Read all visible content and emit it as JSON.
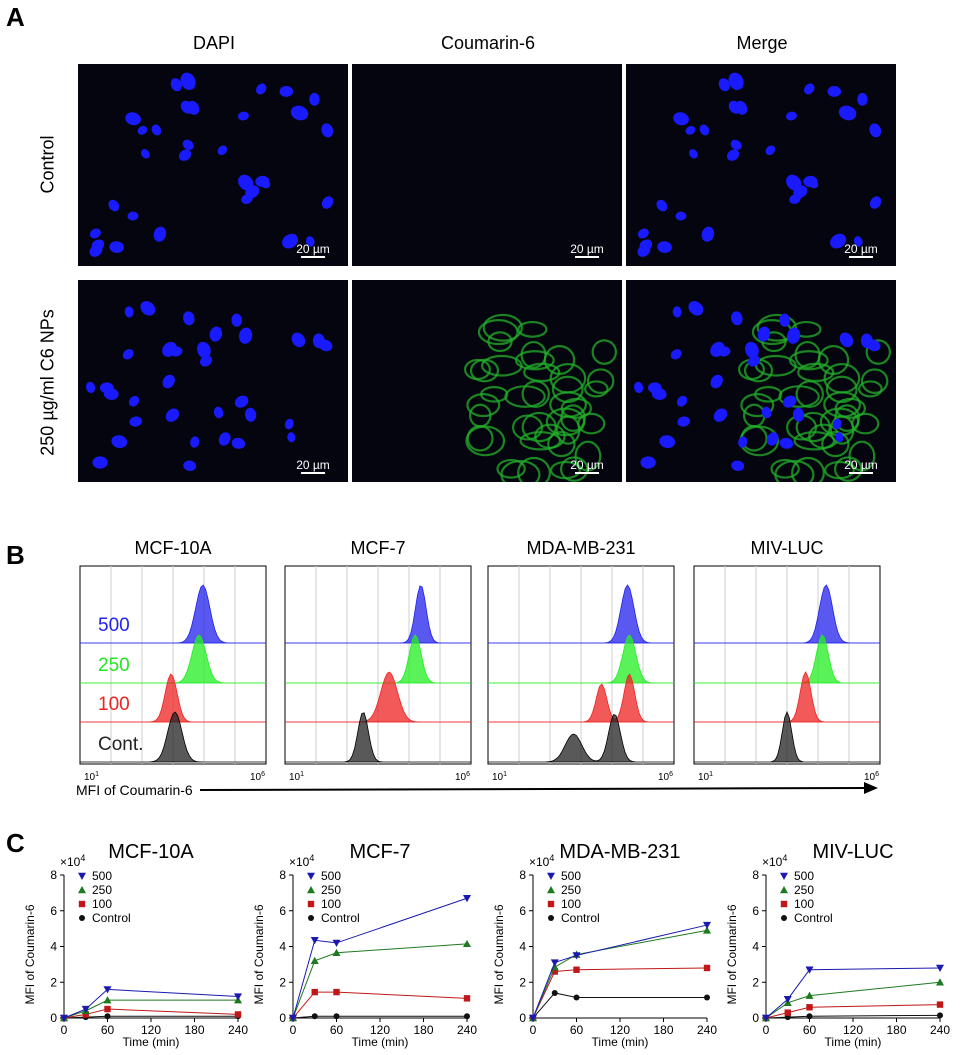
{
  "panels": {
    "a": "A",
    "b": "B",
    "c": "C"
  },
  "micrographs": {
    "columns": [
      "DAPI",
      "Coumarin-6",
      "Merge"
    ],
    "rows": [
      "Control",
      "250 µg/ml C6 NPs"
    ],
    "scale_bar": "20 µm",
    "colors": {
      "nucleus": "#1a1aff",
      "cytoplasm": "#22b02a",
      "background": "#05050f"
    }
  },
  "flow": {
    "cell_lines": [
      "MCF-10A",
      "MCF-7",
      "MDA-MB-231",
      "MIV-LUC"
    ],
    "doses": [
      {
        "label": "500",
        "color": "#2222ee"
      },
      {
        "label": "250",
        "color": "#22ee22"
      },
      {
        "label": "100",
        "color": "#ee2222"
      },
      {
        "label": "Cont.",
        "color": "#222222"
      }
    ],
    "axis_min": "10",
    "axis_min_exp": "1",
    "axis_max": "10",
    "axis_max_exp": "6",
    "xlabel": "MFI of Coumarin-6"
  },
  "chart_data": [
    {
      "type": "line",
      "title": "MCF-10A",
      "xlabel": "Time (min)",
      "ylabel": "MFI of Coumarin-6",
      "y_multiplier": "×10",
      "y_multiplier_exp": "4",
      "x": [
        0,
        30,
        60,
        240
      ],
      "xticks": [
        0,
        60,
        120,
        180,
        240
      ],
      "ylim": [
        0,
        8
      ],
      "yticks": [
        0,
        2,
        4,
        6,
        8
      ],
      "series": [
        {
          "name": "500",
          "values": [
            0,
            0.5,
            1.6,
            1.2
          ],
          "color": "#1a1ab0",
          "marker": "triangle-down"
        },
        {
          "name": "250",
          "values": [
            0,
            0.4,
            1.0,
            1.0
          ],
          "color": "#1e7a1e",
          "marker": "triangle-up"
        },
        {
          "name": "100",
          "values": [
            0,
            0.2,
            0.5,
            0.2
          ],
          "color": "#c01818",
          "marker": "square"
        },
        {
          "name": "Control",
          "values": [
            0,
            0.05,
            0.1,
            0.1
          ],
          "color": "#111111",
          "marker": "circle"
        }
      ]
    },
    {
      "type": "line",
      "title": "MCF-7",
      "xlabel": "Time (min)",
      "ylabel": "MFI of Coumarin-6",
      "y_multiplier": "×10",
      "y_multiplier_exp": "4",
      "x": [
        0,
        30,
        60,
        240
      ],
      "xticks": [
        0,
        60,
        120,
        180,
        240
      ],
      "ylim": [
        0,
        8
      ],
      "yticks": [
        0,
        2,
        4,
        6,
        8
      ],
      "series": [
        {
          "name": "500",
          "values": [
            0,
            4.35,
            4.2,
            6.7
          ],
          "color": "#1a1ab0",
          "marker": "triangle-down"
        },
        {
          "name": "250",
          "values": [
            0,
            3.2,
            3.65,
            4.15
          ],
          "color": "#1e7a1e",
          "marker": "triangle-up"
        },
        {
          "name": "100",
          "values": [
            0,
            1.45,
            1.45,
            1.1
          ],
          "color": "#c01818",
          "marker": "square"
        },
        {
          "name": "Control",
          "values": [
            0,
            0.1,
            0.1,
            0.1
          ],
          "color": "#111111",
          "marker": "circle"
        }
      ]
    },
    {
      "type": "line",
      "title": "MDA-MB-231",
      "xlabel": "Time (min)",
      "ylabel": "MFI of Coumarin-6",
      "y_multiplier": "×10",
      "y_multiplier_exp": "4",
      "x": [
        0,
        30,
        60,
        240
      ],
      "xticks": [
        0,
        60,
        120,
        180,
        240
      ],
      "ylim": [
        0,
        8
      ],
      "yticks": [
        0,
        2,
        4,
        6,
        8
      ],
      "series": [
        {
          "name": "500",
          "values": [
            0,
            3.1,
            3.5,
            5.2
          ],
          "color": "#1a1ab0",
          "marker": "triangle-down"
        },
        {
          "name": "250",
          "values": [
            0,
            2.85,
            3.55,
            4.9
          ],
          "color": "#1e7a1e",
          "marker": "triangle-up"
        },
        {
          "name": "100",
          "values": [
            0,
            2.6,
            2.7,
            2.8
          ],
          "color": "#c01818",
          "marker": "square"
        },
        {
          "name": "Control",
          "values": [
            0,
            1.4,
            1.15,
            1.15
          ],
          "color": "#111111",
          "marker": "circle"
        }
      ]
    },
    {
      "type": "line",
      "title": "MIV-LUC",
      "xlabel": "Time (min)",
      "ylabel": "MFI of Coumarin-6",
      "y_multiplier": "×10",
      "y_multiplier_exp": "4",
      "x": [
        0,
        30,
        60,
        240
      ],
      "xticks": [
        0,
        60,
        120,
        180,
        240
      ],
      "ylim": [
        0,
        8
      ],
      "yticks": [
        0,
        2,
        4,
        6,
        8
      ],
      "series": [
        {
          "name": "500",
          "values": [
            0,
            1.05,
            2.7,
            2.8
          ],
          "color": "#1a1ab0",
          "marker": "triangle-down"
        },
        {
          "name": "250",
          "values": [
            0,
            0.85,
            1.25,
            2.0
          ],
          "color": "#1e7a1e",
          "marker": "triangle-up"
        },
        {
          "name": "100",
          "values": [
            0,
            0.3,
            0.6,
            0.75
          ],
          "color": "#c01818",
          "marker": "square"
        },
        {
          "name": "Control",
          "values": [
            0,
            0.05,
            0.1,
            0.15
          ],
          "color": "#111111",
          "marker": "circle"
        }
      ]
    }
  ]
}
